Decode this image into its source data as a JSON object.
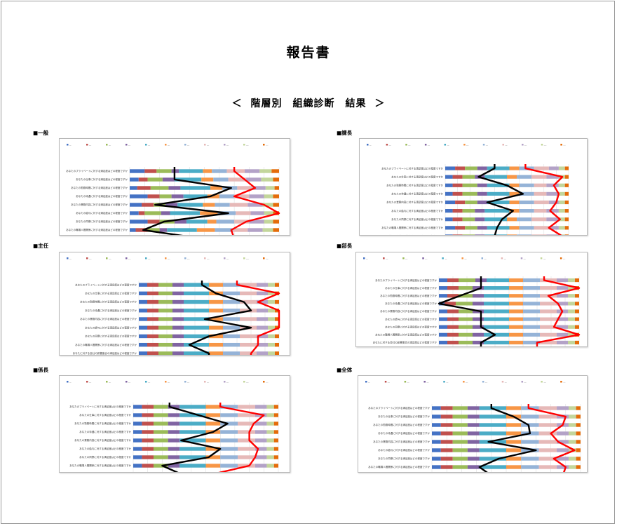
{
  "title": "報告書",
  "subtitle": "＜ 階層別　組織診断　結果 ＞",
  "colors": {
    "segments": [
      "#4472c4",
      "#c0504d",
      "#9bbb59",
      "#8064a2",
      "#4bacc6",
      "#f79646",
      "#95b3d7",
      "#e6b9b8",
      "#b3a2c7",
      "#c3d69b",
      "#e46c0a"
    ],
    "black_line": "#000000",
    "red_line": "#ff0000"
  },
  "legend_labels": [
    "0～10%",
    "11～20%",
    "21～30%",
    "31～40%",
    "41～50%",
    "51～60%",
    "61～70%",
    "71～80%",
    "81～90%",
    "91～100%",
    "わからない"
  ],
  "question_labels": [
    "あなたのプライベートに対する満足度はどの程度ですか",
    "あなたの仕事に対する満足度はどの程度ですか",
    "あなたの勤務時間に対する満足度はどの程度ですか",
    "あなたの待遇に対する満足度はどの程度ですか",
    "あなたの業務内容に対する満足度はどの程度ですか",
    "あなたの給与に対する満足度はどの程度ですか",
    "あなたの同僚に対する満足度はどの程度ですか",
    "あなたの職場人間関係に対する満足度はどの程度ですか",
    "あなたに対する会社の影響度合の満足度はどの程度ですか"
  ],
  "x_ticks": [
    "0%",
    "10%",
    "20%",
    "30%",
    "40%",
    "50%",
    "60%",
    "70%",
    "80%",
    "90%",
    "100%"
  ],
  "chart_data": [
    {
      "type": "bar",
      "label": "■一般",
      "categories": [
        "あなたのプライベートに対する満足度はどの程度ですか",
        "あなたの仕事に対する満足度はどの程度ですか",
        "あなたの勤務時間に対する満足度はどの程度ですか",
        "あなたの待遇に対する満足度はどの程度ですか",
        "あなたの業務内容に対する満足度はどの程度ですか",
        "あなたの給与に対する満足度はどの程度ですか",
        "あなたの同僚に対する満足度はどの程度ですか",
        "あなたの職場人間関係に対する満足度はどの程度ですか",
        "あなたに対する会社の影響度合の満足度はどの程度ですか"
      ],
      "series": [
        {
          "name": "0～10%",
          "values": [
            10,
            6,
            5,
            12,
            8,
            6,
            12,
            4,
            5
          ]
        },
        {
          "name": "11～20%",
          "values": [
            8,
            6,
            9,
            8,
            8,
            4,
            8,
            8,
            8
          ]
        },
        {
          "name": "21～30%",
          "values": [
            10,
            10,
            12,
            8,
            8,
            11,
            10,
            8,
            10
          ]
        },
        {
          "name": "31～40%",
          "values": [
            5,
            8,
            8,
            8,
            8,
            6,
            8,
            5,
            7
          ]
        },
        {
          "name": "41～50%",
          "values": [
            16,
            18,
            20,
            16,
            17,
            20,
            14,
            20,
            18
          ]
        },
        {
          "name": "51～60%",
          "values": [
            6,
            8,
            8,
            8,
            8,
            12,
            6,
            12,
            10
          ]
        },
        {
          "name": "61～70%",
          "values": [
            10,
            10,
            10,
            10,
            10,
            12,
            12,
            12,
            12
          ]
        },
        {
          "name": "71～80%",
          "values": [
            12,
            12,
            10,
            10,
            12,
            10,
            10,
            10,
            12
          ]
        },
        {
          "name": "81～90%",
          "values": [
            10,
            10,
            9,
            10,
            10,
            9,
            10,
            10,
            9
          ]
        },
        {
          "name": "91～100%",
          "values": [
            8,
            8,
            6,
            6,
            7,
            6,
            6,
            7,
            6
          ]
        },
        {
          "name": "わからない",
          "values": [
            5,
            4,
            3,
            4,
            4,
            4,
            4,
            4,
            3
          ]
        }
      ],
      "black_line": [
        30,
        30,
        68,
        54,
        17,
        66,
        23,
        9,
        48
      ],
      "red_line": [
        70,
        77,
        84,
        70,
        90,
        100,
        78,
        68,
        70
      ]
    },
    {
      "type": "bar",
      "label": "■課長",
      "categories": [
        "あなたのプライベートに対する満足度はどの程度ですか",
        "あなたの仕事に対する満足度はどの程度ですか",
        "あなたの勤務時間に対する満足度はどの程度ですか",
        "あなたの待遇に対する満足度はどの程度ですか",
        "あなたの業務内容に対する満足度はどの程度ですか",
        "あなたの給与に対する満足度はどの程度ですか",
        "あなたの同僚に対する満足度はどの程度ですか",
        "あなたの職場人間関係に対する満足度はどの程度ですか",
        "あなたに対する会社の影響度合の満足度はどの程度ですか"
      ],
      "series": [
        {
          "name": "0～10%",
          "values": [
            8,
            6,
            6,
            6,
            8,
            6,
            6,
            8,
            6
          ]
        },
        {
          "name": "11～20%",
          "values": [
            8,
            8,
            8,
            8,
            8,
            8,
            8,
            8,
            8
          ]
        },
        {
          "name": "21～30%",
          "values": [
            10,
            10,
            12,
            12,
            10,
            10,
            10,
            10,
            10
          ]
        },
        {
          "name": "31～40%",
          "values": [
            8,
            8,
            8,
            8,
            8,
            8,
            8,
            8,
            8
          ]
        },
        {
          "name": "41～50%",
          "values": [
            18,
            18,
            18,
            18,
            18,
            20,
            18,
            18,
            18
          ]
        },
        {
          "name": "51～60%",
          "values": [
            8,
            8,
            8,
            8,
            8,
            8,
            8,
            8,
            8
          ]
        },
        {
          "name": "61～70%",
          "values": [
            12,
            12,
            12,
            12,
            12,
            12,
            12,
            12,
            12
          ]
        },
        {
          "name": "71～80%",
          "values": [
            12,
            12,
            10,
            10,
            12,
            10,
            12,
            12,
            12
          ]
        },
        {
          "name": "81～90%",
          "values": [
            8,
            10,
            10,
            10,
            8,
            10,
            10,
            8,
            10
          ]
        },
        {
          "name": "91～100%",
          "values": [
            5,
            5,
            5,
            5,
            5,
            5,
            5,
            5,
            5
          ]
        },
        {
          "name": "わからない",
          "values": [
            3,
            3,
            3,
            3,
            3,
            3,
            3,
            3,
            3
          ]
        }
      ],
      "black_line": [
        40,
        27,
        50,
        63,
        34,
        55,
        46,
        42,
        40
      ],
      "red_line": [
        65,
        95,
        88,
        92,
        90,
        85,
        93,
        84,
        95
      ]
    },
    {
      "type": "bar",
      "label": "■主任",
      "categories": [
        "あなたのプライベートに対する満足度はどの程度ですか",
        "あなたの仕事に対する満足度はどの程度ですか",
        "あなたの勤務時間に対する満足度はどの程度ですか",
        "あなたの待遇に対する満足度はどの程度ですか",
        "あなたの業務内容に対する満足度はどの程度ですか",
        "あなたの給与に対する満足度はどの程度ですか",
        "あなたの同僚に対する満足度はどの程度ですか",
        "あなたの職場人間関係に対する満足度はどの程度ですか",
        "あなたに対する会社の影響度合の満足度はどの程度ですか"
      ],
      "series": [
        {
          "name": "0～10%",
          "values": [
            6,
            6,
            6,
            6,
            6,
            6,
            6,
            6,
            6
          ]
        },
        {
          "name": "11～20%",
          "values": [
            8,
            8,
            8,
            8,
            8,
            8,
            8,
            8,
            8
          ]
        },
        {
          "name": "21～30%",
          "values": [
            10,
            10,
            10,
            10,
            10,
            10,
            10,
            10,
            10
          ]
        },
        {
          "name": "31～40%",
          "values": [
            8,
            8,
            8,
            8,
            8,
            8,
            8,
            8,
            8
          ]
        },
        {
          "name": "41～50%",
          "values": [
            18,
            18,
            18,
            18,
            18,
            18,
            18,
            18,
            18
          ]
        },
        {
          "name": "51～60%",
          "values": [
            10,
            10,
            10,
            10,
            10,
            10,
            10,
            10,
            10
          ]
        },
        {
          "name": "61～70%",
          "values": [
            12,
            12,
            12,
            12,
            12,
            12,
            12,
            12,
            12
          ]
        },
        {
          "name": "71～80%",
          "values": [
            12,
            12,
            12,
            12,
            12,
            12,
            12,
            12,
            12
          ]
        },
        {
          "name": "81～90%",
          "values": [
            8,
            8,
            8,
            8,
            8,
            8,
            8,
            8,
            8
          ]
        },
        {
          "name": "91～100%",
          "values": [
            5,
            5,
            5,
            5,
            5,
            5,
            5,
            5,
            5
          ]
        },
        {
          "name": "わからない",
          "values": [
            3,
            3,
            3,
            3,
            3,
            3,
            3,
            3,
            3
          ]
        }
      ],
      "black_line": [
        45,
        55,
        75,
        80,
        47,
        80,
        50,
        36,
        50
      ],
      "red_line": [
        70,
        100,
        85,
        100,
        100,
        100,
        85,
        85,
        80
      ]
    },
    {
      "type": "bar",
      "label": "■部長",
      "categories": [
        "あなたのプライベートに対する満足度はどの程度ですか",
        "あなたの仕事に対する満足度はどの程度ですか",
        "あなたの勤務時間に対する満足度はどの程度ですか",
        "あなたの待遇に対する満足度はどの程度ですか",
        "あなたの業務内容に対する満足度はどの程度ですか",
        "あなたの給与に対する満足度はどの程度ですか",
        "あなたの同僚に対する満足度はどの程度ですか",
        "あなたの職場人間関係に対する満足度はどの程度ですか",
        "あなたに対する会社の影響度合の満足度はどの程度ですか"
      ],
      "series": [
        {
          "name": "0～10%",
          "values": [
            6,
            6,
            6,
            4,
            6,
            6,
            6,
            6,
            6
          ]
        },
        {
          "name": "11～20%",
          "values": [
            8,
            8,
            8,
            8,
            8,
            8,
            8,
            8,
            8
          ]
        },
        {
          "name": "21～30%",
          "values": [
            12,
            10,
            10,
            12,
            10,
            10,
            10,
            10,
            10
          ]
        },
        {
          "name": "31～40%",
          "values": [
            8,
            8,
            8,
            8,
            8,
            8,
            8,
            8,
            8
          ]
        },
        {
          "name": "41～50%",
          "values": [
            16,
            18,
            18,
            18,
            18,
            18,
            18,
            18,
            18
          ]
        },
        {
          "name": "51～60%",
          "values": [
            10,
            10,
            10,
            10,
            10,
            10,
            10,
            10,
            10
          ]
        },
        {
          "name": "61～70%",
          "values": [
            12,
            12,
            12,
            12,
            12,
            12,
            12,
            12,
            12
          ]
        },
        {
          "name": "71～80%",
          "values": [
            12,
            12,
            12,
            12,
            12,
            12,
            12,
            12,
            12
          ]
        },
        {
          "name": "81～90%",
          "values": [
            8,
            8,
            8,
            8,
            8,
            8,
            8,
            8,
            8
          ]
        },
        {
          "name": "91～100%",
          "values": [
            5,
            5,
            5,
            5,
            5,
            5,
            5,
            5,
            5
          ]
        },
        {
          "name": "わからない",
          "values": [
            3,
            3,
            3,
            3,
            3,
            3,
            3,
            3,
            3
          ]
        }
      ],
      "black_line": [
        30,
        30,
        15,
        0,
        30,
        30,
        30,
        40,
        30
      ],
      "red_line": [
        75,
        100,
        78,
        85,
        88,
        85,
        82,
        100,
        70
      ]
    },
    {
      "type": "bar",
      "label": "■係長",
      "categories": [
        "あなたのプライベートに対する満足度はどの程度ですか",
        "あなたの仕事に対する満足度はどの程度ですか",
        "あなたの勤務時間に対する満足度はどの程度ですか",
        "あなたの待遇に対する満足度はどの程度ですか",
        "あなたの業務内容に対する満足度はどの程度ですか",
        "あなたの給与に対する満足度はどの程度ですか",
        "あなたの同僚に対する満足度はどの程度ですか",
        "あなたの職場人間関係に対する満足度はどの程度ですか",
        "あなたに対する会社の影響度合の満足度はどの程度ですか"
      ],
      "series": [
        {
          "name": "0～10%",
          "values": [
            6,
            6,
            6,
            6,
            6,
            6,
            6,
            6,
            6
          ]
        },
        {
          "name": "11～20%",
          "values": [
            8,
            8,
            8,
            8,
            8,
            8,
            8,
            8,
            8
          ]
        },
        {
          "name": "21～30%",
          "values": [
            10,
            10,
            10,
            10,
            10,
            10,
            10,
            10,
            10
          ]
        },
        {
          "name": "31～40%",
          "values": [
            8,
            8,
            8,
            8,
            8,
            8,
            8,
            8,
            8
          ]
        },
        {
          "name": "41～50%",
          "values": [
            18,
            18,
            18,
            18,
            18,
            18,
            18,
            18,
            18
          ]
        },
        {
          "name": "51～60%",
          "values": [
            10,
            10,
            10,
            10,
            10,
            10,
            10,
            10,
            10
          ]
        },
        {
          "name": "61～70%",
          "values": [
            12,
            12,
            12,
            12,
            12,
            12,
            12,
            12,
            12
          ]
        },
        {
          "name": "71～80%",
          "values": [
            12,
            12,
            12,
            12,
            12,
            12,
            12,
            12,
            12
          ]
        },
        {
          "name": "81～90%",
          "values": [
            8,
            8,
            8,
            8,
            8,
            8,
            8,
            8,
            8
          ]
        },
        {
          "name": "91～100%",
          "values": [
            5,
            5,
            5,
            5,
            5,
            5,
            5,
            5,
            5
          ]
        },
        {
          "name": "わからない",
          "values": [
            3,
            3,
            3,
            3,
            3,
            3,
            3,
            3,
            3
          ]
        }
      ],
      "black_line": [
        25,
        45,
        65,
        55,
        33,
        60,
        52,
        20,
        33
      ],
      "red_line": [
        60,
        90,
        83,
        80,
        80,
        86,
        84,
        80,
        55
      ]
    },
    {
      "type": "bar",
      "label": "■全体",
      "categories": [
        "あなたのプライベートに対する満足度はどの程度ですか",
        "あなたの仕事に対する満足度はどの程度ですか",
        "あなたの勤務時間に対する満足度はどの程度ですか",
        "あなたの待遇に対する満足度はどの程度ですか",
        "あなたの業務内容に対する満足度はどの程度ですか",
        "あなたの給与に対する満足度はどの程度ですか",
        "あなたの同僚に対する満足度はどの程度ですか",
        "あなたの職場人間関係に対する満足度はどの程度ですか",
        "あなたに対する会社の影響度合の満足度はどの程度ですか"
      ],
      "series": [
        {
          "name": "0～10%",
          "values": [
            6,
            6,
            6,
            6,
            6,
            6,
            6,
            6,
            6
          ]
        },
        {
          "name": "11～20%",
          "values": [
            8,
            8,
            8,
            8,
            8,
            8,
            8,
            8,
            8
          ]
        },
        {
          "name": "21～30%",
          "values": [
            10,
            10,
            10,
            10,
            10,
            10,
            10,
            10,
            10
          ]
        },
        {
          "name": "31～40%",
          "values": [
            8,
            8,
            8,
            8,
            8,
            8,
            8,
            8,
            8
          ]
        },
        {
          "name": "41～50%",
          "values": [
            18,
            18,
            18,
            18,
            18,
            18,
            18,
            18,
            18
          ]
        },
        {
          "name": "51～60%",
          "values": [
            10,
            10,
            10,
            10,
            10,
            10,
            10,
            10,
            10
          ]
        },
        {
          "name": "61～70%",
          "values": [
            12,
            12,
            12,
            12,
            12,
            12,
            12,
            12,
            12
          ]
        },
        {
          "name": "71～80%",
          "values": [
            12,
            12,
            12,
            12,
            12,
            12,
            12,
            12,
            12
          ]
        },
        {
          "name": "81～90%",
          "values": [
            8,
            8,
            8,
            8,
            8,
            8,
            8,
            8,
            8
          ]
        },
        {
          "name": "91～100%",
          "values": [
            5,
            5,
            5,
            5,
            5,
            5,
            5,
            5,
            5
          ]
        },
        {
          "name": "わからない",
          "values": [
            3,
            3,
            3,
            3,
            3,
            3,
            3,
            3,
            3
          ]
        }
      ],
      "black_line": [
        40,
        55,
        65,
        66,
        38,
        70,
        45,
        32,
        40
      ],
      "red_line": [
        65,
        90,
        88,
        80,
        85,
        96,
        82,
        90,
        88
      ]
    }
  ]
}
